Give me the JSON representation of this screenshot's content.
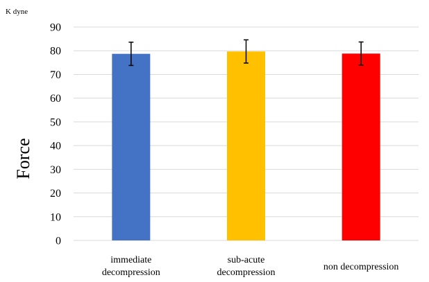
{
  "chart_data": {
    "type": "bar",
    "categories": [
      "immediate decompression",
      "sub-acute decompression",
      "non decompression"
    ],
    "category_lines": [
      [
        "immediate",
        "decompression"
      ],
      [
        "sub-acute",
        "decompression"
      ],
      [
        "non decompression"
      ]
    ],
    "values": [
      78.7,
      79.7,
      78.8
    ],
    "errors": [
      4.9,
      4.9,
      4.9
    ],
    "colors": [
      "#4472C4",
      "#FFC000",
      "#FF0000"
    ],
    "ylabel": "Force",
    "yunit": "K dyne",
    "ylim": [
      0,
      90
    ],
    "yticks": [
      0,
      10,
      20,
      30,
      40,
      50,
      60,
      70,
      80,
      90
    ],
    "grid": true,
    "legend": "none"
  }
}
